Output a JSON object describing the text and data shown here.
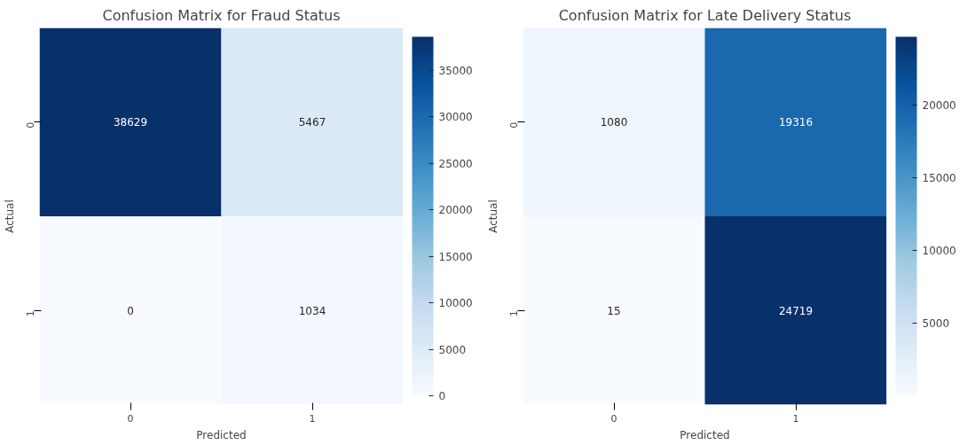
{
  "chart_data": [
    {
      "type": "heatmap",
      "title": "Confusion Matrix for Fraud Status",
      "xlabel": "Predicted",
      "ylabel": "Actual",
      "categories": [
        "0",
        "1"
      ],
      "y_categories": [
        "0",
        "1"
      ],
      "cells": [
        [
          38629,
          5467
        ],
        [
          0,
          1034
        ]
      ],
      "data_labels": true,
      "clim": [
        0,
        38629
      ],
      "cticks": [
        0,
        5000,
        10000,
        15000,
        20000,
        25000,
        30000,
        35000
      ]
    },
    {
      "type": "heatmap",
      "title": "Confusion Matrix for Late Delivery Status",
      "xlabel": "Predicted",
      "ylabel": "Actual",
      "categories": [
        "0",
        "1"
      ],
      "y_categories": [
        "0",
        "1"
      ],
      "cells": [
        [
          1080,
          19316
        ],
        [
          15,
          24719
        ]
      ],
      "data_labels": true,
      "clim": [
        15,
        24719
      ],
      "cticks": [
        5000,
        10000,
        15000,
        20000
      ]
    }
  ]
}
